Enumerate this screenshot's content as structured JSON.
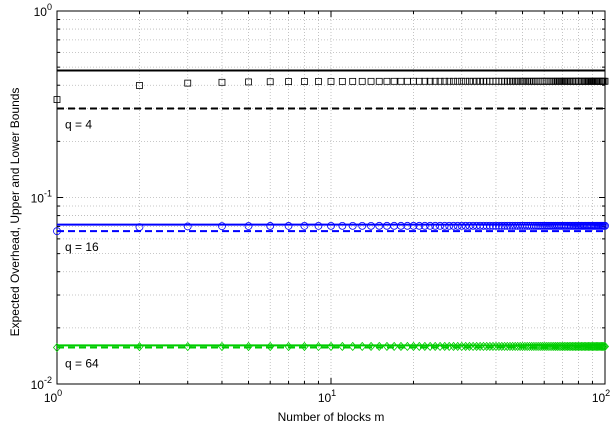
{
  "chart_data": {
    "type": "line",
    "title": "",
    "xlabel": "Number of blocks m",
    "ylabel": "Expected Overhead, Upper and Lower Bounds",
    "xscale": "log",
    "yscale": "log",
    "xlim": [
      1,
      100
    ],
    "ylim": [
      0.01,
      1
    ],
    "grid": true,
    "x_ticks": [
      {
        "base": "10",
        "exp": "0"
      },
      {
        "base": "10",
        "exp": "1"
      },
      {
        "base": "10",
        "exp": "2"
      }
    ],
    "y_ticks": [
      {
        "base": "10",
        "exp": "-2"
      },
      {
        "base": "10",
        "exp": "-1"
      },
      {
        "base": "10",
        "exp": "0"
      }
    ],
    "groups": [
      {
        "annotation": "q = 4",
        "color": "#000000",
        "marker": "square",
        "upper": 0.48,
        "lower": 0.3,
        "expected_start": 0.335,
        "expected_limit": 0.42
      },
      {
        "annotation": "q = 16",
        "color": "#0000ff",
        "marker": "circle",
        "upper": 0.0715,
        "lower": 0.066,
        "expected_start": 0.066,
        "expected_limit": 0.0705
      },
      {
        "annotation": "q = 64",
        "color": "#00cc00",
        "marker": "diamond",
        "upper": 0.0161,
        "lower": 0.0157,
        "expected_start": 0.0157,
        "expected_limit": 0.0159
      }
    ]
  }
}
